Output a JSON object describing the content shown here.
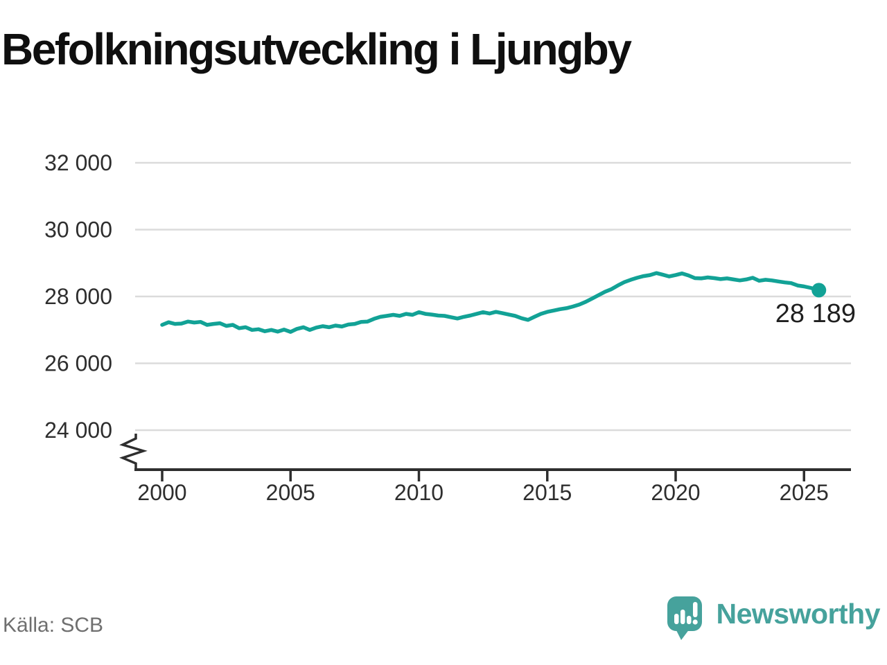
{
  "title": "Befolkningsutveckling i Ljungby",
  "source": {
    "label": "Källa: SCB"
  },
  "branding": {
    "name": "Newsworthy"
  },
  "colors": {
    "line": "#12a296",
    "brand": "#46a29c",
    "grid": "#dbdbdb",
    "axis": "#2e2e2e",
    "tick_text": "#2e2e2e",
    "end_label_text": "#1f1f1f",
    "title_text": "#0f0f0f",
    "muted_text": "#6f6f6f"
  },
  "chart_data": {
    "type": "line",
    "title": "Befolkningsutveckling i Ljungby",
    "xlabel": "",
    "ylabel": "",
    "grid": "horizontal",
    "legend": false,
    "axis_break": true,
    "xlim": [
      2000,
      2025.6
    ],
    "ylim": [
      24000,
      32000
    ],
    "x_ticks": [
      2000,
      2005,
      2010,
      2015,
      2020,
      2025
    ],
    "y_ticks": [
      24000,
      26000,
      28000,
      30000,
      32000
    ],
    "y_tick_labels": [
      "24 000",
      "26 000",
      "28 000",
      "30 000",
      "32 000"
    ],
    "end_label": "28 189",
    "end_value": 28189,
    "series": [
      {
        "name": "Befolkning",
        "points": [
          [
            2000.0,
            27150
          ],
          [
            2000.25,
            27230
          ],
          [
            2000.5,
            27180
          ],
          [
            2000.75,
            27190
          ],
          [
            2001.0,
            27250
          ],
          [
            2001.25,
            27220
          ],
          [
            2001.5,
            27240
          ],
          [
            2001.75,
            27150
          ],
          [
            2002.0,
            27180
          ],
          [
            2002.25,
            27200
          ],
          [
            2002.5,
            27120
          ],
          [
            2002.75,
            27150
          ],
          [
            2003.0,
            27050
          ],
          [
            2003.25,
            27080
          ],
          [
            2003.5,
            27000
          ],
          [
            2003.75,
            27020
          ],
          [
            2004.0,
            26960
          ],
          [
            2004.25,
            27000
          ],
          [
            2004.5,
            26950
          ],
          [
            2004.75,
            27010
          ],
          [
            2005.0,
            26940
          ],
          [
            2005.25,
            27030
          ],
          [
            2005.5,
            27080
          ],
          [
            2005.75,
            27000
          ],
          [
            2006.0,
            27070
          ],
          [
            2006.25,
            27110
          ],
          [
            2006.5,
            27080
          ],
          [
            2006.75,
            27130
          ],
          [
            2007.0,
            27100
          ],
          [
            2007.25,
            27160
          ],
          [
            2007.5,
            27180
          ],
          [
            2007.75,
            27240
          ],
          [
            2008.0,
            27250
          ],
          [
            2008.25,
            27330
          ],
          [
            2008.5,
            27390
          ],
          [
            2008.75,
            27420
          ],
          [
            2009.0,
            27450
          ],
          [
            2009.25,
            27420
          ],
          [
            2009.5,
            27480
          ],
          [
            2009.75,
            27450
          ],
          [
            2010.0,
            27530
          ],
          [
            2010.25,
            27480
          ],
          [
            2010.5,
            27460
          ],
          [
            2010.75,
            27430
          ],
          [
            2011.0,
            27420
          ],
          [
            2011.25,
            27380
          ],
          [
            2011.5,
            27340
          ],
          [
            2011.75,
            27390
          ],
          [
            2012.0,
            27430
          ],
          [
            2012.25,
            27480
          ],
          [
            2012.5,
            27530
          ],
          [
            2012.75,
            27490
          ],
          [
            2013.0,
            27540
          ],
          [
            2013.25,
            27500
          ],
          [
            2013.5,
            27460
          ],
          [
            2013.75,
            27420
          ],
          [
            2014.0,
            27350
          ],
          [
            2014.25,
            27300
          ],
          [
            2014.5,
            27390
          ],
          [
            2014.75,
            27480
          ],
          [
            2015.0,
            27540
          ],
          [
            2015.25,
            27580
          ],
          [
            2015.5,
            27620
          ],
          [
            2015.75,
            27650
          ],
          [
            2016.0,
            27700
          ],
          [
            2016.25,
            27760
          ],
          [
            2016.5,
            27840
          ],
          [
            2016.75,
            27940
          ],
          [
            2017.0,
            28040
          ],
          [
            2017.25,
            28140
          ],
          [
            2017.5,
            28220
          ],
          [
            2017.75,
            28330
          ],
          [
            2018.0,
            28430
          ],
          [
            2018.25,
            28500
          ],
          [
            2018.5,
            28560
          ],
          [
            2018.75,
            28610
          ],
          [
            2019.0,
            28640
          ],
          [
            2019.25,
            28700
          ],
          [
            2019.5,
            28650
          ],
          [
            2019.75,
            28600
          ],
          [
            2020.0,
            28640
          ],
          [
            2020.25,
            28690
          ],
          [
            2020.5,
            28630
          ],
          [
            2020.75,
            28550
          ],
          [
            2021.0,
            28540
          ],
          [
            2021.25,
            28570
          ],
          [
            2021.5,
            28550
          ],
          [
            2021.75,
            28520
          ],
          [
            2022.0,
            28540
          ],
          [
            2022.25,
            28510
          ],
          [
            2022.5,
            28480
          ],
          [
            2022.75,
            28510
          ],
          [
            2023.0,
            28560
          ],
          [
            2023.25,
            28470
          ],
          [
            2023.5,
            28500
          ],
          [
            2023.75,
            28480
          ],
          [
            2024.0,
            28450
          ],
          [
            2024.25,
            28420
          ],
          [
            2024.5,
            28400
          ],
          [
            2024.75,
            28330
          ],
          [
            2025.0,
            28300
          ],
          [
            2025.25,
            28260
          ],
          [
            2025.58,
            28189
          ]
        ]
      }
    ]
  }
}
